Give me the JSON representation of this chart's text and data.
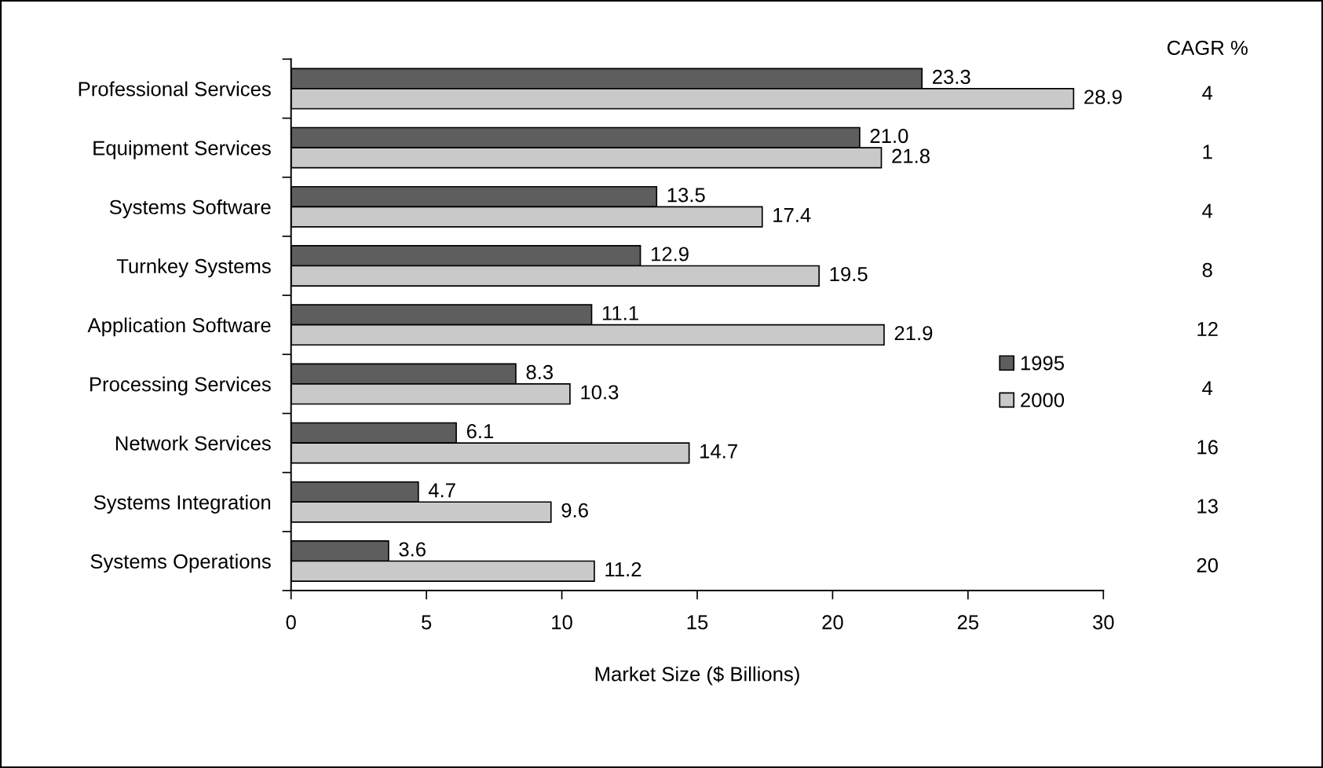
{
  "chart_data": {
    "type": "bar",
    "orientation": "horizontal",
    "categories": [
      "Professional Services",
      "Equipment Services",
      "Systems Software",
      "Turnkey Systems",
      "Application Software",
      "Processing Services",
      "Network Services",
      "Systems Integration",
      "Systems Operations"
    ],
    "series": [
      {
        "name": "1995",
        "color": "#5e5e5e",
        "values": [
          23.3,
          21.0,
          13.5,
          12.9,
          11.1,
          8.3,
          6.1,
          4.7,
          3.6
        ],
        "value_labels": [
          "23.3",
          "21.0",
          "13.5",
          "12.9",
          "11.1",
          "8.3",
          "6.1",
          "4.7",
          "3.6"
        ]
      },
      {
        "name": "2000",
        "color": "#c9c9c9",
        "values": [
          28.9,
          21.8,
          17.4,
          19.5,
          21.9,
          10.3,
          14.7,
          9.6,
          11.2
        ],
        "value_labels": [
          "28.9",
          "21.8",
          "17.4",
          "19.5",
          "21.9",
          "10.3",
          "14.7",
          "9.6",
          "11.2"
        ]
      }
    ],
    "xlabel": "Market Size ($ Billions)",
    "xlim": [
      0,
      30
    ],
    "xticks": [
      0,
      5,
      10,
      15,
      20,
      25,
      30
    ],
    "legend": "right",
    "grid": false,
    "annotations": [
      "CAGR %",
      "4",
      "1",
      "4",
      "8",
      "12",
      "4",
      "16",
      "13",
      "20"
    ]
  }
}
